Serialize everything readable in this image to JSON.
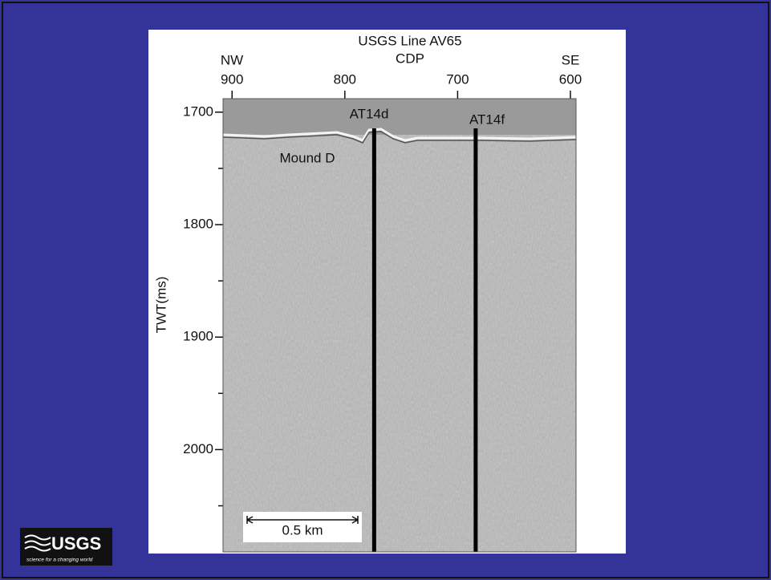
{
  "chart_data": {
    "type": "seismic",
    "title": "USGS Line AV65",
    "xlabel": "CDP",
    "ylabel": "TWT(ms)",
    "direction_left": "NW",
    "direction_right": "SE",
    "xlim": [
      908,
      595
    ],
    "xticks": [
      900,
      800,
      700,
      600
    ],
    "ylim": [
      1688,
      2091
    ],
    "yticks": [
      1700,
      1800,
      1900,
      2000
    ],
    "yminorticks": [
      1750,
      1850,
      1950,
      2050
    ],
    "wells": [
      {
        "name": "AT14d",
        "x": 774
      },
      {
        "name": "AT14f",
        "x": 684
      }
    ],
    "feature_label": "Mound D",
    "scale_label": "0.5 km"
  },
  "logo": {
    "text": "USGS",
    "tagline": "science for a changing world"
  }
}
